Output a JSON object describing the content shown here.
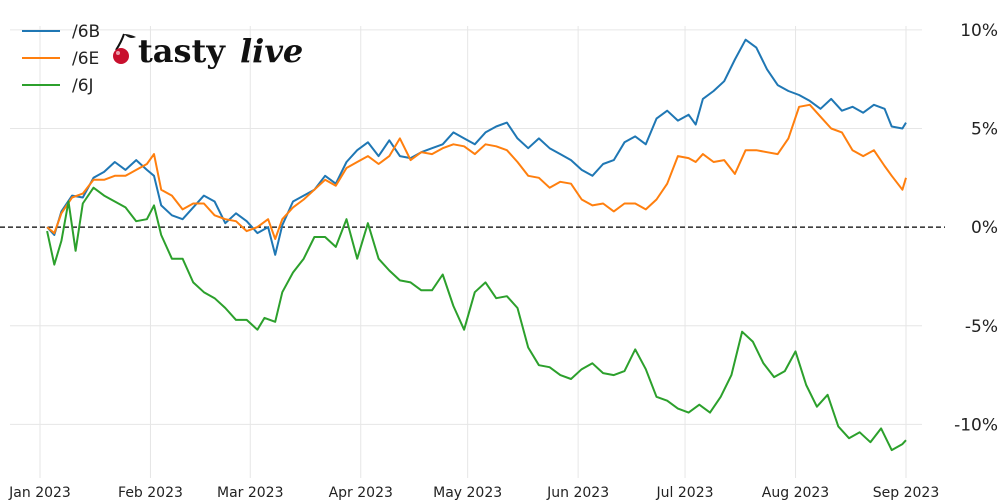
{
  "brand": {
    "logo_text_plain": "tasty",
    "logo_text_italic": "live"
  },
  "colors": {
    "series_6B": "#1f77b4",
    "series_6E": "#ff7f0e",
    "series_6J": "#2ca02c",
    "zero_line": "#000000",
    "grid": "#e6e6e6"
  },
  "chart_data": {
    "type": "line",
    "title": "",
    "xlabel": "",
    "ylabel": "",
    "x_tick_labels": [
      "Jan 2023",
      "Feb 2023",
      "Mar 2023",
      "Apr 2023",
      "May 2023",
      "Jun 2023",
      "Jul 2023",
      "Aug 2023",
      "Sep 2023"
    ],
    "y_tick_labels": [
      "10%",
      "5%",
      "0%",
      "-5%",
      "-10%"
    ],
    "y_ticks": [
      10,
      5,
      0,
      -5,
      -10
    ],
    "ylim": [
      -11.5,
      10.5
    ],
    "x_range": [
      "2023-01-01",
      "2023-09-01"
    ],
    "y_axis_side": "right",
    "grid": true,
    "legend_position": "top-left",
    "zero_line": "dashed",
    "series": [
      {
        "name": "/6B",
        "points": [
          [
            "2023-01-03",
            0.0
          ],
          [
            "2023-01-05",
            -0.4
          ],
          [
            "2023-01-07",
            0.8
          ],
          [
            "2023-01-10",
            1.6
          ],
          [
            "2023-01-13",
            1.5
          ],
          [
            "2023-01-16",
            2.5
          ],
          [
            "2023-01-19",
            2.8
          ],
          [
            "2023-01-22",
            3.3
          ],
          [
            "2023-01-25",
            2.9
          ],
          [
            "2023-01-28",
            3.4
          ],
          [
            "2023-01-31",
            2.9
          ],
          [
            "2023-02-02",
            2.6
          ],
          [
            "2023-02-04",
            1.1
          ],
          [
            "2023-02-07",
            0.6
          ],
          [
            "2023-02-10",
            0.4
          ],
          [
            "2023-02-13",
            1.0
          ],
          [
            "2023-02-16",
            1.6
          ],
          [
            "2023-02-19",
            1.3
          ],
          [
            "2023-02-22",
            0.2
          ],
          [
            "2023-02-25",
            0.7
          ],
          [
            "2023-02-28",
            0.3
          ],
          [
            "2023-03-03",
            -0.3
          ],
          [
            "2023-03-06",
            0.0
          ],
          [
            "2023-03-08",
            -1.4
          ],
          [
            "2023-03-10",
            0.1
          ],
          [
            "2023-03-13",
            1.3
          ],
          [
            "2023-03-16",
            1.6
          ],
          [
            "2023-03-19",
            1.9
          ],
          [
            "2023-03-22",
            2.6
          ],
          [
            "2023-03-25",
            2.2
          ],
          [
            "2023-03-28",
            3.3
          ],
          [
            "2023-03-31",
            3.9
          ],
          [
            "2023-04-03",
            4.3
          ],
          [
            "2023-04-06",
            3.6
          ],
          [
            "2023-04-09",
            4.4
          ],
          [
            "2023-04-12",
            3.6
          ],
          [
            "2023-04-15",
            3.5
          ],
          [
            "2023-04-18",
            3.8
          ],
          [
            "2023-04-21",
            4.0
          ],
          [
            "2023-04-24",
            4.2
          ],
          [
            "2023-04-27",
            4.8
          ],
          [
            "2023-04-30",
            4.5
          ],
          [
            "2023-05-03",
            4.2
          ],
          [
            "2023-05-06",
            4.8
          ],
          [
            "2023-05-09",
            5.1
          ],
          [
            "2023-05-12",
            5.3
          ],
          [
            "2023-05-15",
            4.5
          ],
          [
            "2023-05-18",
            4.0
          ],
          [
            "2023-05-21",
            4.5
          ],
          [
            "2023-05-24",
            4.0
          ],
          [
            "2023-05-27",
            3.7
          ],
          [
            "2023-05-30",
            3.4
          ],
          [
            "2023-06-02",
            2.9
          ],
          [
            "2023-06-05",
            2.6
          ],
          [
            "2023-06-08",
            3.2
          ],
          [
            "2023-06-11",
            3.4
          ],
          [
            "2023-06-14",
            4.3
          ],
          [
            "2023-06-17",
            4.6
          ],
          [
            "2023-06-20",
            4.2
          ],
          [
            "2023-06-23",
            5.5
          ],
          [
            "2023-06-26",
            5.9
          ],
          [
            "2023-06-29",
            5.4
          ],
          [
            "2023-07-02",
            5.7
          ],
          [
            "2023-07-04",
            5.2
          ],
          [
            "2023-07-06",
            6.5
          ],
          [
            "2023-07-09",
            6.9
          ],
          [
            "2023-07-12",
            7.4
          ],
          [
            "2023-07-15",
            8.5
          ],
          [
            "2023-07-18",
            9.5
          ],
          [
            "2023-07-21",
            9.1
          ],
          [
            "2023-07-24",
            8.0
          ],
          [
            "2023-07-27",
            7.2
          ],
          [
            "2023-07-30",
            6.9
          ],
          [
            "2023-08-02",
            6.7
          ],
          [
            "2023-08-05",
            6.4
          ],
          [
            "2023-08-08",
            6.0
          ],
          [
            "2023-08-11",
            6.5
          ],
          [
            "2023-08-14",
            5.9
          ],
          [
            "2023-08-17",
            6.1
          ],
          [
            "2023-08-20",
            5.8
          ],
          [
            "2023-08-23",
            6.2
          ],
          [
            "2023-08-26",
            6.0
          ],
          [
            "2023-08-28",
            5.1
          ],
          [
            "2023-08-31",
            5.0
          ],
          [
            "2023-09-01",
            5.3
          ]
        ]
      },
      {
        "name": "/6E",
        "points": [
          [
            "2023-01-03",
            0.0
          ],
          [
            "2023-01-05",
            -0.3
          ],
          [
            "2023-01-07",
            0.7
          ],
          [
            "2023-01-10",
            1.5
          ],
          [
            "2023-01-13",
            1.7
          ],
          [
            "2023-01-16",
            2.4
          ],
          [
            "2023-01-19",
            2.4
          ],
          [
            "2023-01-22",
            2.6
          ],
          [
            "2023-01-25",
            2.6
          ],
          [
            "2023-01-28",
            2.9
          ],
          [
            "2023-01-31",
            3.2
          ],
          [
            "2023-02-02",
            3.7
          ],
          [
            "2023-02-04",
            1.9
          ],
          [
            "2023-02-07",
            1.6
          ],
          [
            "2023-02-10",
            0.9
          ],
          [
            "2023-02-13",
            1.2
          ],
          [
            "2023-02-16",
            1.2
          ],
          [
            "2023-02-19",
            0.6
          ],
          [
            "2023-02-22",
            0.4
          ],
          [
            "2023-02-25",
            0.3
          ],
          [
            "2023-02-28",
            -0.2
          ],
          [
            "2023-03-03",
            0.0
          ],
          [
            "2023-03-06",
            0.4
          ],
          [
            "2023-03-08",
            -0.6
          ],
          [
            "2023-03-10",
            0.4
          ],
          [
            "2023-03-13",
            1.0
          ],
          [
            "2023-03-16",
            1.4
          ],
          [
            "2023-03-19",
            1.9
          ],
          [
            "2023-03-22",
            2.4
          ],
          [
            "2023-03-25",
            2.1
          ],
          [
            "2023-03-28",
            3.0
          ],
          [
            "2023-03-31",
            3.3
          ],
          [
            "2023-04-03",
            3.6
          ],
          [
            "2023-04-06",
            3.2
          ],
          [
            "2023-04-09",
            3.6
          ],
          [
            "2023-04-12",
            4.5
          ],
          [
            "2023-04-15",
            3.4
          ],
          [
            "2023-04-18",
            3.8
          ],
          [
            "2023-04-21",
            3.7
          ],
          [
            "2023-04-24",
            4.0
          ],
          [
            "2023-04-27",
            4.2
          ],
          [
            "2023-04-30",
            4.1
          ],
          [
            "2023-05-03",
            3.7
          ],
          [
            "2023-05-06",
            4.2
          ],
          [
            "2023-05-09",
            4.1
          ],
          [
            "2023-05-12",
            3.9
          ],
          [
            "2023-05-15",
            3.3
          ],
          [
            "2023-05-18",
            2.6
          ],
          [
            "2023-05-21",
            2.5
          ],
          [
            "2023-05-24",
            2.0
          ],
          [
            "2023-05-27",
            2.3
          ],
          [
            "2023-05-30",
            2.2
          ],
          [
            "2023-06-02",
            1.4
          ],
          [
            "2023-06-05",
            1.1
          ],
          [
            "2023-06-08",
            1.2
          ],
          [
            "2023-06-11",
            0.8
          ],
          [
            "2023-06-14",
            1.2
          ],
          [
            "2023-06-17",
            1.2
          ],
          [
            "2023-06-20",
            0.9
          ],
          [
            "2023-06-23",
            1.4
          ],
          [
            "2023-06-26",
            2.2
          ],
          [
            "2023-06-29",
            3.6
          ],
          [
            "2023-07-02",
            3.5
          ],
          [
            "2023-07-04",
            3.3
          ],
          [
            "2023-07-06",
            3.7
          ],
          [
            "2023-07-09",
            3.3
          ],
          [
            "2023-07-12",
            3.4
          ],
          [
            "2023-07-15",
            2.7
          ],
          [
            "2023-07-18",
            3.9
          ],
          [
            "2023-07-21",
            3.9
          ],
          [
            "2023-07-24",
            3.8
          ],
          [
            "2023-07-27",
            3.7
          ],
          [
            "2023-07-30",
            4.5
          ],
          [
            "2023-08-02",
            6.1
          ],
          [
            "2023-08-05",
            6.2
          ],
          [
            "2023-08-08",
            5.6
          ],
          [
            "2023-08-11",
            5.0
          ],
          [
            "2023-08-14",
            4.8
          ],
          [
            "2023-08-17",
            3.9
          ],
          [
            "2023-08-20",
            3.6
          ],
          [
            "2023-08-23",
            3.9
          ],
          [
            "2023-08-26",
            3.1
          ],
          [
            "2023-08-28",
            2.6
          ],
          [
            "2023-08-31",
            1.9
          ],
          [
            "2023-09-01",
            2.5
          ]
        ]
      },
      {
        "name": "/6J",
        "points": [
          [
            "2023-01-03",
            -0.2
          ],
          [
            "2023-01-05",
            -1.9
          ],
          [
            "2023-01-07",
            -0.7
          ],
          [
            "2023-01-09",
            1.3
          ],
          [
            "2023-01-11",
            -1.2
          ],
          [
            "2023-01-13",
            1.2
          ],
          [
            "2023-01-16",
            2.0
          ],
          [
            "2023-01-19",
            1.6
          ],
          [
            "2023-01-22",
            1.3
          ],
          [
            "2023-01-25",
            1.0
          ],
          [
            "2023-01-28",
            0.3
          ],
          [
            "2023-01-31",
            0.4
          ],
          [
            "2023-02-02",
            1.1
          ],
          [
            "2023-02-04",
            -0.4
          ],
          [
            "2023-02-07",
            -1.6
          ],
          [
            "2023-02-10",
            -1.6
          ],
          [
            "2023-02-13",
            -2.8
          ],
          [
            "2023-02-16",
            -3.3
          ],
          [
            "2023-02-19",
            -3.6
          ],
          [
            "2023-02-22",
            -4.1
          ],
          [
            "2023-02-25",
            -4.7
          ],
          [
            "2023-02-28",
            -4.7
          ],
          [
            "2023-03-03",
            -5.2
          ],
          [
            "2023-03-05",
            -4.6
          ],
          [
            "2023-03-08",
            -4.8
          ],
          [
            "2023-03-10",
            -3.3
          ],
          [
            "2023-03-13",
            -2.3
          ],
          [
            "2023-03-16",
            -1.6
          ],
          [
            "2023-03-19",
            -0.5
          ],
          [
            "2023-03-22",
            -0.5
          ],
          [
            "2023-03-25",
            -1.0
          ],
          [
            "2023-03-28",
            0.4
          ],
          [
            "2023-03-31",
            -1.6
          ],
          [
            "2023-04-03",
            0.2
          ],
          [
            "2023-04-06",
            -1.6
          ],
          [
            "2023-04-09",
            -2.2
          ],
          [
            "2023-04-12",
            -2.7
          ],
          [
            "2023-04-15",
            -2.8
          ],
          [
            "2023-04-18",
            -3.2
          ],
          [
            "2023-04-21",
            -3.2
          ],
          [
            "2023-04-24",
            -2.4
          ],
          [
            "2023-04-27",
            -4.0
          ],
          [
            "2023-04-30",
            -5.2
          ],
          [
            "2023-05-03",
            -3.3
          ],
          [
            "2023-05-06",
            -2.8
          ],
          [
            "2023-05-09",
            -3.6
          ],
          [
            "2023-05-12",
            -3.5
          ],
          [
            "2023-05-15",
            -4.1
          ],
          [
            "2023-05-18",
            -6.1
          ],
          [
            "2023-05-21",
            -7.0
          ],
          [
            "2023-05-24",
            -7.1
          ],
          [
            "2023-05-27",
            -7.5
          ],
          [
            "2023-05-30",
            -7.7
          ],
          [
            "2023-06-02",
            -7.2
          ],
          [
            "2023-06-05",
            -6.9
          ],
          [
            "2023-06-08",
            -7.4
          ],
          [
            "2023-06-11",
            -7.5
          ],
          [
            "2023-06-14",
            -7.3
          ],
          [
            "2023-06-17",
            -6.2
          ],
          [
            "2023-06-20",
            -7.2
          ],
          [
            "2023-06-23",
            -8.6
          ],
          [
            "2023-06-26",
            -8.8
          ],
          [
            "2023-06-29",
            -9.2
          ],
          [
            "2023-07-02",
            -9.4
          ],
          [
            "2023-07-05",
            -9.0
          ],
          [
            "2023-07-08",
            -9.4
          ],
          [
            "2023-07-11",
            -8.6
          ],
          [
            "2023-07-14",
            -7.5
          ],
          [
            "2023-07-17",
            -5.3
          ],
          [
            "2023-07-20",
            -5.8
          ],
          [
            "2023-07-23",
            -6.9
          ],
          [
            "2023-07-26",
            -7.6
          ],
          [
            "2023-07-29",
            -7.3
          ],
          [
            "2023-08-01",
            -6.3
          ],
          [
            "2023-08-04",
            -8.0
          ],
          [
            "2023-08-07",
            -9.1
          ],
          [
            "2023-08-10",
            -8.5
          ],
          [
            "2023-08-13",
            -10.1
          ],
          [
            "2023-08-16",
            -10.7
          ],
          [
            "2023-08-19",
            -10.4
          ],
          [
            "2023-08-22",
            -10.9
          ],
          [
            "2023-08-25",
            -10.2
          ],
          [
            "2023-08-28",
            -11.3
          ],
          [
            "2023-08-31",
            -11.0
          ],
          [
            "2023-09-01",
            -10.8
          ]
        ]
      }
    ]
  }
}
